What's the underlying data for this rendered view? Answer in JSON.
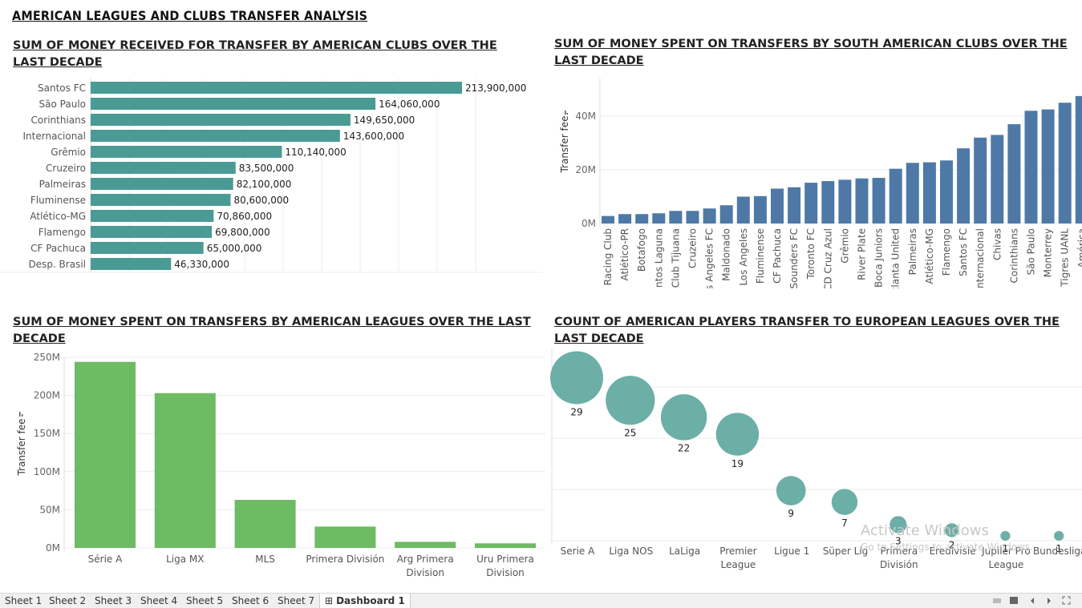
{
  "dashboard_title": "AMERICAN LEAGUES AND CLUBS TRANSFER ANALYSIS",
  "panels": {
    "received": {
      "title": "SUM OF MONEY RECEIVED FOR TRANSFER BY AMERICAN CLUBS OVER THE LAST DECADE"
    },
    "spent_clubs": {
      "title": "SUM OF MONEY SPENT ON TRANSFERS BY SOUTH AMERICAN CLUBS OVER THE LAST DECADE"
    },
    "spent_leagues": {
      "title": "SUM OF MONEY SPENT ON TRANSFERS BY AMERICAN LEAGUES OVER THE LAST DECADE"
    },
    "count_players": {
      "title": "COUNT OF AMERICAN PLAYERS TRANSFER TO EUROPEAN LEAGUES OVER THE LAST DECADE"
    }
  },
  "chart_data": [
    {
      "type": "bar",
      "orientation": "horizontal",
      "color": "#4a9b94",
      "categories": [
        "Santos FC",
        "São Paulo",
        "Corinthians",
        "Internacional",
        "Grêmio",
        "Cruzeiro",
        "Palmeiras",
        "Fluminense",
        "Atlético-MG",
        "Flamengo",
        "CF Pachuca",
        "Desp. Brasil"
      ],
      "values": [
        213900000,
        164060000,
        149650000,
        143600000,
        110140000,
        83500000,
        82100000,
        80600000,
        70860000,
        69800000,
        65000000,
        46330000
      ],
      "value_labels": [
        "213,900,000",
        "164,060,000",
        "149,650,000",
        "143,600,000",
        "110,140,000",
        "83,500,000",
        "82,100,000",
        "80,600,000",
        "70,860,000",
        "69,800,000",
        "65,000,000",
        "46,330,000"
      ],
      "grid": true
    },
    {
      "type": "bar",
      "orientation": "vertical",
      "color": "#4e79a7",
      "ylabel": "Transfer fee",
      "yticks": [
        "0M",
        "20M",
        "40M"
      ],
      "ylim": [
        0,
        45000000
      ],
      "categories": [
        "Racing Club",
        "Atlético-PR",
        "Botafogo",
        "Santos Laguna",
        "Club Tijuana",
        "Cruzeiro",
        "Los Angeles FC",
        "Maldonado",
        "Los Angeles",
        "Fluminense",
        "CF Pachuca",
        "Sounders FC",
        "Toronto FC",
        "CD Cruz Azul",
        "Grêmio",
        "River Plate",
        "Boca Juniors",
        "Atlanta United",
        "Palmeiras",
        "Atlético-MG",
        "Flamengo",
        "Santos FC",
        "Internacional",
        "Chivas",
        "Corinthians",
        "São Paulo",
        "Monterrey",
        "Tigres UANL",
        "América"
      ],
      "values": [
        2800000,
        3500000,
        3500000,
        3800000,
        4700000,
        4700000,
        5600000,
        6800000,
        10000000,
        10200000,
        13000000,
        13500000,
        15200000,
        15800000,
        16300000,
        16800000,
        17000000,
        20400000,
        22600000,
        22800000,
        23500000,
        28000000,
        32000000,
        33000000,
        37000000,
        42000000,
        42500000,
        45000000,
        47500000
      ]
    },
    {
      "type": "bar",
      "orientation": "vertical",
      "color": "#6dbb62",
      "ylabel": "Transfer fee",
      "yticks": [
        "0M",
        "50M",
        "100M",
        "150M",
        "200M",
        "250M"
      ],
      "ylim": [
        0,
        250000000
      ],
      "categories": [
        "Série A",
        "Liga MX",
        "MLS",
        "Primera División",
        "Arg Primera Division",
        "Uru Primera Division"
      ],
      "values": [
        244000000,
        203000000,
        63000000,
        28000000,
        8000000,
        6000000
      ]
    },
    {
      "type": "scatter",
      "color": "#5fa8a0",
      "categories": [
        "Serie A",
        "Liga NOS",
        "LaLiga",
        "Premier League",
        "Ligue 1",
        "Süper Lig",
        "Primera División",
        "Eredivisie",
        "Jupiler Pro League",
        "Bundesliga"
      ],
      "x_labels": [
        "Serie A",
        "Liga NOS",
        "LaLiga",
        "Premier\nLeague",
        "Ligue 1",
        "Süper Lig",
        "Primera\nDivisión",
        "Eredivisie",
        "Jupiler Pro\nLeague",
        "Bundesliga"
      ],
      "values": [
        29,
        25,
        22,
        19,
        9,
        7,
        3,
        2,
        1,
        1
      ],
      "value_labels": [
        "29",
        "25",
        "22",
        "19",
        "9",
        "7",
        "3",
        "2",
        "1",
        "1"
      ]
    }
  ],
  "tabs": [
    "Sheet 1",
    "Sheet 2",
    "Sheet 3",
    "Sheet 4",
    "Sheet 5",
    "Sheet 6",
    "Sheet 7",
    "Dashboard 1"
  ],
  "active_tab": "Dashboard 1",
  "watermark": {
    "line1": "Activate Windows",
    "line2": "Go to Settings to activate Windows."
  }
}
